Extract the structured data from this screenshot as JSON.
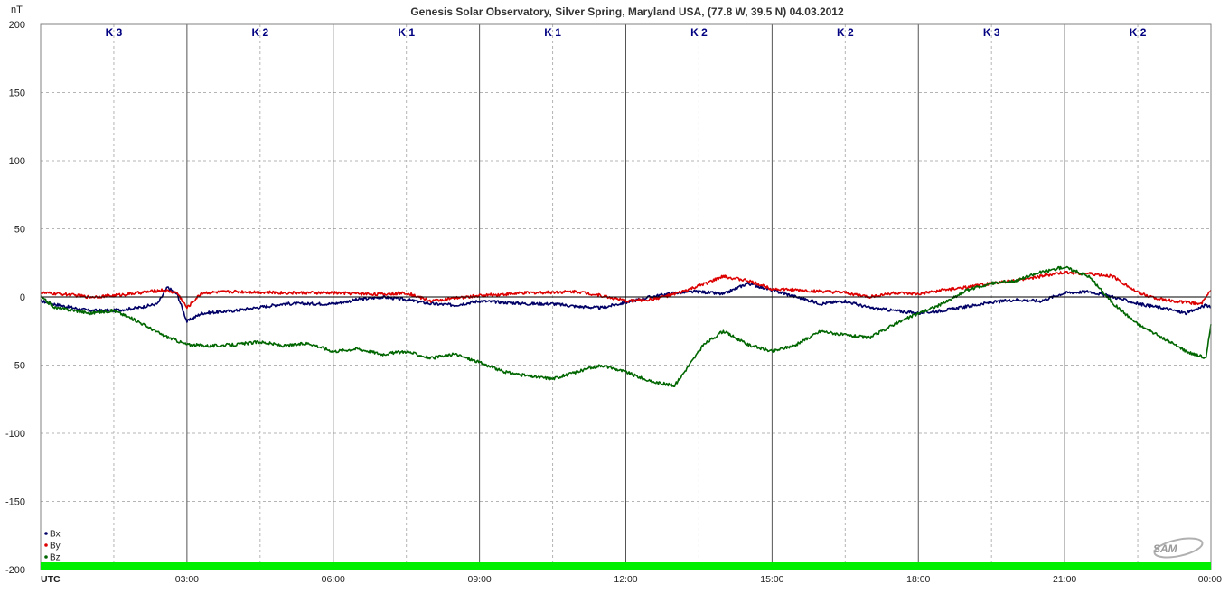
{
  "chart_data": {
    "type": "line",
    "title": "Genesis Solar Observatory, Silver Spring, Maryland USA, (77.8 W, 39.5 N)  04.03.2012",
    "ylabel": "nT",
    "xlabel": "UTC",
    "ylim": [
      -200,
      200
    ],
    "xlim_hours": [
      0,
      24
    ],
    "y_ticks": [
      "200",
      "150",
      "100",
      "50",
      "0",
      "-50",
      "-100",
      "-150",
      "-200"
    ],
    "x_ticks": [
      "03:00",
      "06:00",
      "09:00",
      "12:00",
      "15:00",
      "18:00",
      "21:00",
      "00:00"
    ],
    "grid": true,
    "legend_position": "bottom-left",
    "k_index": [
      {
        "hours": [
          0,
          3
        ],
        "label": "K 3"
      },
      {
        "hours": [
          3,
          6
        ],
        "label": "K 2"
      },
      {
        "hours": [
          6,
          9
        ],
        "label": "K 1"
      },
      {
        "hours": [
          9,
          12
        ],
        "label": "K 1"
      },
      {
        "hours": [
          12,
          15
        ],
        "label": "K 2"
      },
      {
        "hours": [
          15,
          18
        ],
        "label": "K 2"
      },
      {
        "hours": [
          18,
          21
        ],
        "label": "K 3"
      },
      {
        "hours": [
          21,
          24
        ],
        "label": "K 2"
      }
    ],
    "series": [
      {
        "name": "Bx",
        "color": "#000066",
        "x": [
          0,
          0.5,
          1,
          1.5,
          2,
          2.4,
          2.6,
          2.8,
          3,
          3.3,
          4,
          5,
          6,
          6.5,
          7,
          7.5,
          8,
          8.5,
          9,
          9.5,
          10,
          10.5,
          11,
          11.5,
          12,
          12.5,
          13,
          13.5,
          14,
          14.5,
          15,
          15.5,
          16,
          16.5,
          17,
          17.5,
          18,
          18.5,
          19,
          19.5,
          20,
          20.5,
          21,
          21.5,
          22,
          22.5,
          23,
          23.5,
          23.9,
          24
        ],
        "y": [
          -3,
          -7,
          -10,
          -10,
          -8,
          -5,
          7,
          2,
          -18,
          -12,
          -10,
          -5,
          -5,
          -2,
          0,
          -2,
          -5,
          -6,
          -3,
          -4,
          -5,
          -5,
          -7,
          -8,
          -4,
          0,
          3,
          4,
          2,
          10,
          5,
          0,
          -5,
          -3,
          -8,
          -10,
          -12,
          -10,
          -7,
          -4,
          -2,
          -3,
          3,
          4,
          0,
          -5,
          -8,
          -12,
          -6,
          -8
        ]
      },
      {
        "name": "By",
        "color": "#dd0000",
        "x": [
          0,
          0.5,
          1,
          1.5,
          2,
          2.5,
          2.8,
          3,
          3.3,
          4,
          5,
          6,
          7,
          7.5,
          8,
          8.5,
          9,
          10,
          11,
          11.5,
          12,
          12.5,
          13,
          13.5,
          14,
          14.5,
          15,
          15.5,
          16,
          16.5,
          17,
          17.5,
          18,
          18.5,
          19,
          19.5,
          20,
          20.5,
          21,
          21.5,
          22,
          22.5,
          23,
          23.5,
          23.8,
          24
        ],
        "y": [
          3,
          2,
          0,
          1,
          3,
          5,
          3,
          -8,
          3,
          4,
          3,
          3,
          2,
          3,
          -3,
          -1,
          1,
          3,
          4,
          1,
          -3,
          -2,
          2,
          8,
          15,
          12,
          6,
          5,
          4,
          3,
          0,
          3,
          2,
          5,
          7,
          10,
          12,
          15,
          18,
          17,
          15,
          3,
          -2,
          -4,
          -5,
          5
        ]
      },
      {
        "name": "Bz",
        "color": "#006600",
        "x": [
          0,
          0.3,
          0.7,
          1,
          1.5,
          2,
          2.5,
          3,
          3.5,
          4,
          4.5,
          5,
          5.5,
          6,
          6.5,
          7,
          7.5,
          8,
          8.5,
          9,
          9.5,
          10,
          10.5,
          11,
          11.5,
          12,
          12.5,
          13,
          13.3,
          13.6,
          14,
          14.5,
          15,
          15.5,
          16,
          16.5,
          17,
          17.5,
          18,
          18.5,
          19,
          19.5,
          20,
          20.5,
          21,
          21.5,
          22,
          22.5,
          23,
          23.5,
          23.9,
          24
        ],
        "y": [
          0,
          -8,
          -10,
          -12,
          -10,
          -18,
          -28,
          -35,
          -36,
          -35,
          -33,
          -36,
          -34,
          -40,
          -38,
          -42,
          -40,
          -45,
          -42,
          -48,
          -55,
          -58,
          -60,
          -55,
          -50,
          -55,
          -62,
          -65,
          -50,
          -35,
          -25,
          -35,
          -40,
          -35,
          -25,
          -28,
          -30,
          -20,
          -12,
          -5,
          5,
          10,
          12,
          18,
          22,
          15,
          -5,
          -20,
          -30,
          -40,
          -45,
          -20
        ]
      }
    ]
  },
  "legend": {
    "items": [
      "Bx",
      "By",
      "Bz"
    ]
  }
}
